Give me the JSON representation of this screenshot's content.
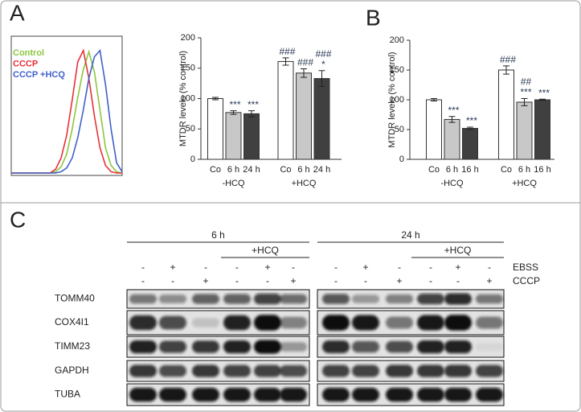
{
  "panel_labels": [
    "A",
    "B",
    "C"
  ],
  "chart_data": [
    {
      "type": "line",
      "legend": "top-left",
      "xlim": [
        0,
        100
      ],
      "ylim": [
        0,
        100
      ],
      "x": [
        0,
        5,
        10,
        15,
        20,
        25,
        30,
        35,
        40,
        45,
        50,
        55,
        60,
        65,
        70,
        75,
        80,
        85,
        90,
        95,
        100
      ],
      "series": [
        {
          "name": "Control",
          "color": "#8cc63f",
          "values": [
            0,
            0,
            0,
            0,
            0,
            0,
            0,
            0,
            1,
            5,
            15,
            35,
            60,
            82,
            96,
            80,
            50,
            20,
            6,
            1,
            0
          ]
        },
        {
          "name": "CCCP",
          "color": "#e8303a",
          "values": [
            0,
            0,
            0,
            0,
            0,
            0,
            0,
            0,
            3,
            12,
            30,
            58,
            88,
            97,
            75,
            45,
            20,
            6,
            1,
            0,
            0
          ]
        },
        {
          "name": "CCCP +HCQ",
          "color": "#4060c8",
          "values": [
            0,
            0,
            0,
            0,
            0,
            0,
            0,
            0,
            0,
            1,
            4,
            12,
            28,
            50,
            75,
            92,
            97,
            70,
            35,
            8,
            1
          ]
        }
      ]
    },
    {
      "type": "bar",
      "ylabel": "MTDR levels (% control)",
      "categories": [
        "Co",
        "6 h",
        "24 h",
        "Co",
        "6 h",
        "24 h"
      ],
      "groups": [
        "-HCQ",
        "+HCQ"
      ],
      "values": [
        100,
        77,
        75,
        161,
        142,
        133
      ],
      "errors": [
        2,
        3,
        5,
        6,
        7,
        13
      ],
      "colors": [
        "#ffffff",
        "#c8c8c8",
        "#404040",
        "#ffffff",
        "#c8c8c8",
        "#404040"
      ],
      "annotations": [
        [],
        [
          "***"
        ],
        [
          "***"
        ],
        [
          "###"
        ],
        [
          "###"
        ],
        [
          "###",
          "*"
        ]
      ],
      "ylim": [
        0,
        200
      ],
      "yticks": [
        0,
        50,
        100,
        150,
        200
      ]
    },
    {
      "type": "bar",
      "ylabel": "MTDR levels (% control)",
      "categories": [
        "Co",
        "6 h",
        "16 h",
        "Co",
        "6 h",
        "16 h"
      ],
      "groups": [
        "-HCQ",
        "+HCQ"
      ],
      "values": [
        100,
        67,
        52,
        150,
        96,
        100
      ],
      "errors": [
        2,
        5,
        2,
        7,
        6,
        1
      ],
      "colors": [
        "#ffffff",
        "#c8c8c8",
        "#404040",
        "#ffffff",
        "#c8c8c8",
        "#404040"
      ],
      "annotations": [
        [],
        [
          "***"
        ],
        [
          "***"
        ],
        [
          "###"
        ],
        [
          "##",
          "***"
        ],
        [
          "***"
        ]
      ],
      "ylim": [
        0,
        200
      ],
      "yticks": [
        0,
        50,
        100,
        150,
        200
      ]
    }
  ],
  "blot": {
    "ebss_label": "EBSS",
    "cccp_label": "CCCP",
    "time_points": [
      {
        "label": "6 h",
        "treatment": "+HCQ",
        "ebss": [
          "-",
          "+",
          "-",
          "-",
          "+",
          "-"
        ],
        "cccp": [
          "-",
          "-",
          "+",
          "-",
          "-",
          "+"
        ]
      },
      {
        "label": "24 h",
        "treatment": "+HCQ",
        "ebss": [
          "-",
          "+",
          "-",
          "-",
          "+",
          "-"
        ],
        "cccp": [
          "-",
          "-",
          "+",
          "-",
          "-",
          "+"
        ]
      }
    ],
    "rows": [
      "TOMM40",
      "COX4I1",
      "TIMM23",
      "GAPDH",
      "TUBA"
    ]
  }
}
